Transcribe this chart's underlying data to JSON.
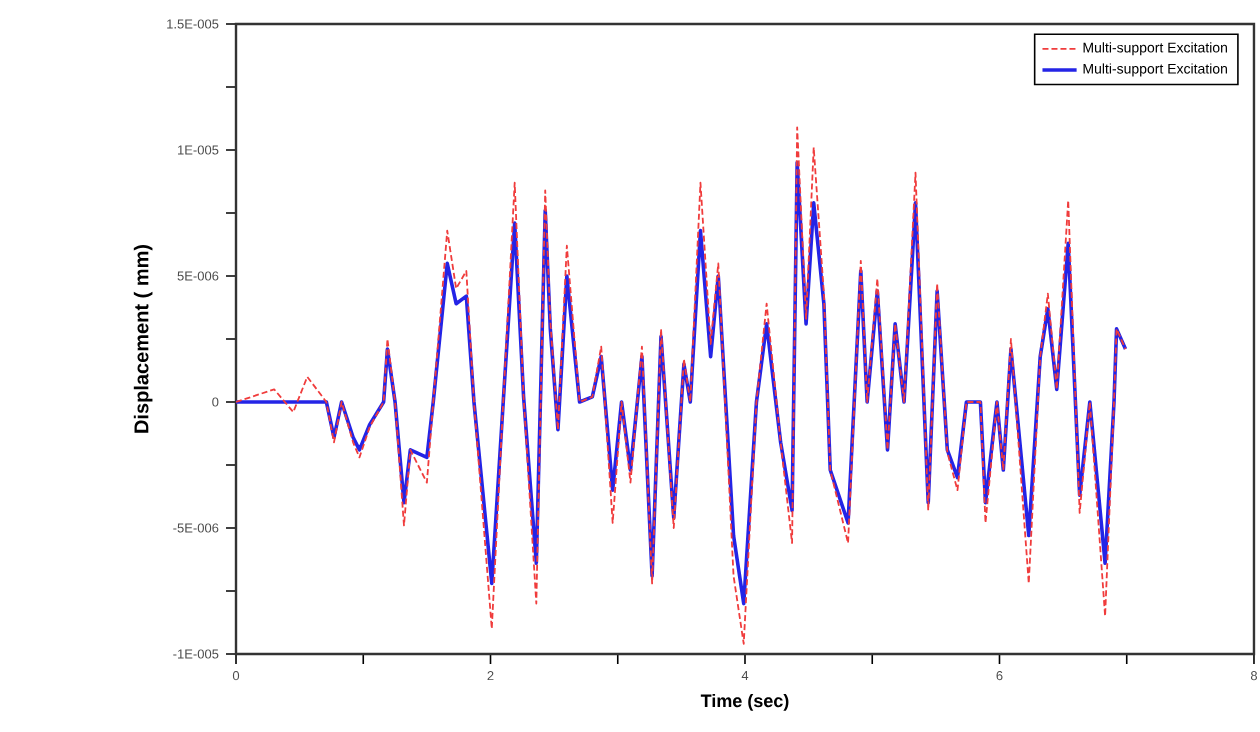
{
  "chart_data": {
    "type": "line",
    "xlabel": "Time (sec)",
    "ylabel": "Displacement ( mm)",
    "xlim": [
      0,
      8
    ],
    "xticks": [
      0,
      {
        "value": 1,
        "label": null
      },
      2,
      {
        "value": 3,
        "label": null
      },
      4,
      {
        "value": 5,
        "label": null
      },
      6,
      {
        "value": 7,
        "label": null
      },
      8
    ],
    "ylim": [
      -1e-05,
      1.5e-05
    ],
    "yticks": [
      {
        "value": -1e-05,
        "label": "-1E-005"
      },
      {
        "value": -7.5e-06,
        "label": null
      },
      {
        "value": -5e-06,
        "label": "-5E-006"
      },
      {
        "value": -2.5e-06,
        "label": null
      },
      0,
      {
        "value": 2.5e-06,
        "label": null
      },
      {
        "value": 5e-06,
        "label": "5E-006"
      },
      {
        "value": 7.5e-06,
        "label": null
      },
      {
        "value": 1e-05,
        "label": "1E-005"
      },
      {
        "value": 1.25e-05,
        "label": null
      },
      {
        "value": 1.5e-05,
        "label": "1.5E-005"
      }
    ],
    "grid": false,
    "legend": "top right",
    "marker": "none",
    "x": [
      0,
      0.3,
      0.45,
      0.56,
      0.71,
      0.77,
      0.83,
      0.92,
      0.97,
      1.05,
      1.16,
      1.19,
      1.25,
      1.32,
      1.37,
      1.5,
      1.55,
      1.66,
      1.73,
      1.81,
      1.87,
      2.01,
      2.1,
      2.19,
      2.26,
      2.36,
      2.43,
      2.47,
      2.53,
      2.6,
      2.7,
      2.8,
      2.87,
      2.96,
      3.03,
      3.1,
      3.19,
      3.27,
      3.34,
      3.44,
      3.52,
      3.57,
      3.65,
      3.73,
      3.79,
      3.91,
      3.99,
      4.09,
      4.17,
      4.28,
      4.37,
      4.41,
      4.48,
      4.54,
      4.62,
      4.67,
      4.81,
      4.91,
      4.96,
      5.04,
      5.12,
      5.18,
      5.25,
      5.34,
      5.44,
      5.51,
      5.59,
      5.67,
      5.74,
      5.85,
      5.89,
      5.98,
      6.03,
      6.09,
      6.23,
      6.32,
      6.38,
      6.45,
      6.54,
      6.63,
      6.71,
      6.83,
      6.9,
      6.92,
      6.99
    ],
    "series": [
      {
        "name": "Multi-support Excitation",
        "color": "#f03c3c",
        "line_style": "dashed",
        "values": [
          0,
          5e-07,
          -4e-07,
          1e-06,
          0,
          -1.6e-06,
          0,
          -1.6e-06,
          -2.2e-06,
          -1e-06,
          0,
          2.5e-06,
          0,
          -4.9e-06,
          -1.9e-06,
          -3.2e-06,
          0,
          6.8e-06,
          4.5e-06,
          5.2e-06,
          0,
          -9e-06,
          0,
          8.7e-06,
          2e-07,
          -8e-06,
          8.4e-06,
          3.2e-06,
          -1.1e-06,
          6.2e-06,
          0,
          2e-07,
          2.2e-06,
          -4.8e-06,
          0,
          -3.2e-06,
          2.2e-06,
          -7.2e-06,
          2.9e-06,
          -5e-06,
          1.7e-06,
          0,
          8.7e-06,
          2.3e-06,
          5.5e-06,
          -6.9e-06,
          -9.6e-06,
          0,
          3.9e-06,
          -1.6e-06,
          -5.6e-06,
          1.09e-05,
          3.3e-06,
          1.01e-05,
          4.3e-06,
          -2.7e-06,
          -5.6e-06,
          5.6e-06,
          0,
          4.9e-06,
          -1.9e-06,
          3.1e-06,
          0,
          9.1e-06,
          -4.3e-06,
          4.7e-06,
          -2e-06,
          -3.5e-06,
          0,
          0,
          -4.8e-06,
          0,
          -2.7e-06,
          2.5e-06,
          -7.2e-06,
          1.8e-06,
          4.3e-06,
          5e-07,
          8e-06,
          -4.4e-06,
          0,
          -8.5e-06,
          0,
          2.9e-06,
          2.1e-06
        ]
      },
      {
        "name": "Multi-support Excitation",
        "color": "#2424e6",
        "line_style": "solid",
        "values": [
          0,
          0,
          0,
          0,
          0,
          -1.4e-06,
          0,
          -1.4e-06,
          -1.9e-06,
          -9e-07,
          0,
          2.1e-06,
          0,
          -4e-06,
          -1.9e-06,
          -2.2e-06,
          0,
          5.5e-06,
          3.9e-06,
          4.2e-06,
          0,
          -7.2e-06,
          0,
          7.1e-06,
          2e-07,
          -6.4e-06,
          7.6e-06,
          2.9e-06,
          -1.1e-06,
          5e-06,
          0,
          2e-07,
          1.8e-06,
          -3.5e-06,
          0,
          -2.7e-06,
          1.8e-06,
          -6.9e-06,
          2.6e-06,
          -4.6e-06,
          1.5e-06,
          0,
          6.8e-06,
          1.8e-06,
          5e-06,
          -5.3e-06,
          -8e-06,
          0,
          3.1e-06,
          -1.6e-06,
          -4.3e-06,
          9.5e-06,
          3.1e-06,
          7.9e-06,
          3.9e-06,
          -2.7e-06,
          -4.8e-06,
          5.2e-06,
          0,
          4.4e-06,
          -1.9e-06,
          3.1e-06,
          0,
          7.9e-06,
          -4e-06,
          4.4e-06,
          -1.9e-06,
          -3e-06,
          0,
          0,
          -4e-06,
          0,
          -2.7e-06,
          2.1e-06,
          -5.3e-06,
          1.8e-06,
          3.7e-06,
          5e-07,
          6.3e-06,
          -3.7e-06,
          0,
          -6.4e-06,
          0,
          2.9e-06,
          2.1e-06
        ]
      }
    ]
  }
}
